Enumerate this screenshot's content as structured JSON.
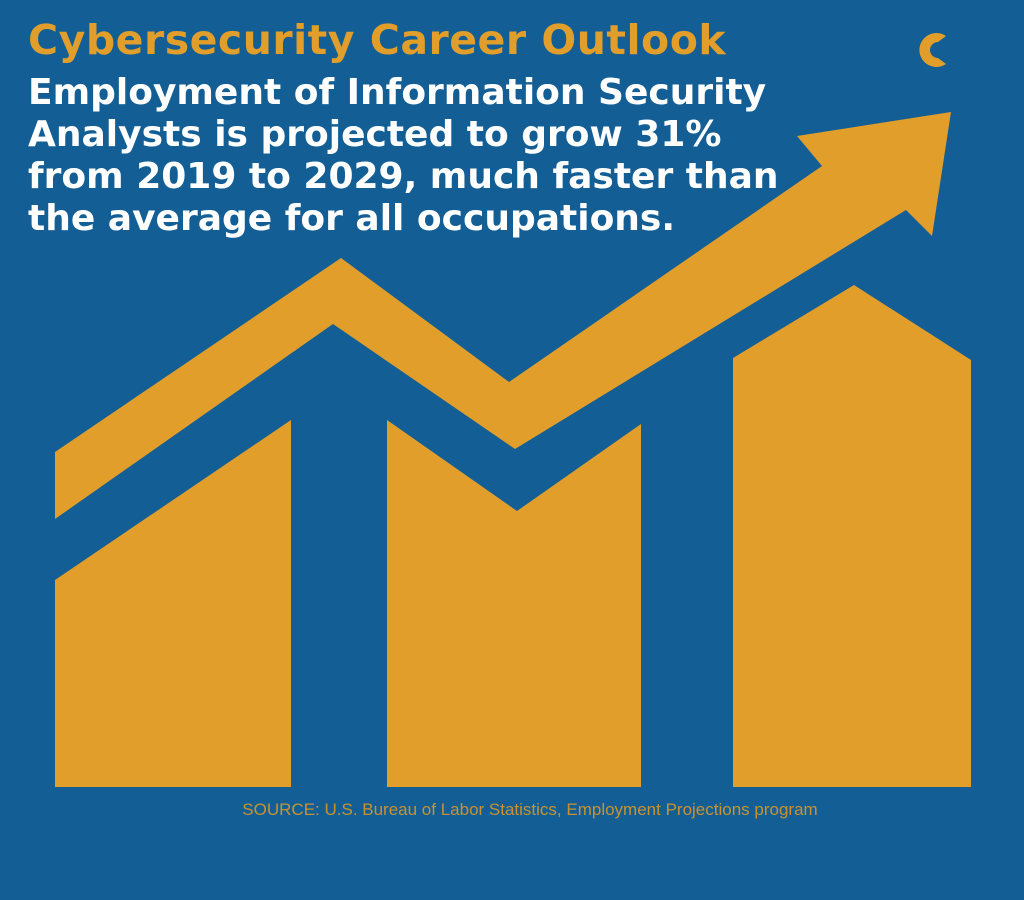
{
  "title": "Cybersecurity Career Outlook",
  "subtitle": {
    "lines": [
      "Employment of Information Security",
      "Analysts is projected to grow 31%",
      "from 2019 to 2029, much faster than",
      "the average for all occupations."
    ]
  },
  "source": "SOURCE: U.S. Bureau of Labor Statistics, Employment Projections program",
  "colors": {
    "background": "#135f95",
    "accent": "#e19e2a",
    "text": "#ffffff",
    "logo_dark": "#1d3f72"
  },
  "icons": {
    "logo": "crescent-c-logo-icon",
    "graphic": "rising-bars-with-arrow-icon"
  }
}
